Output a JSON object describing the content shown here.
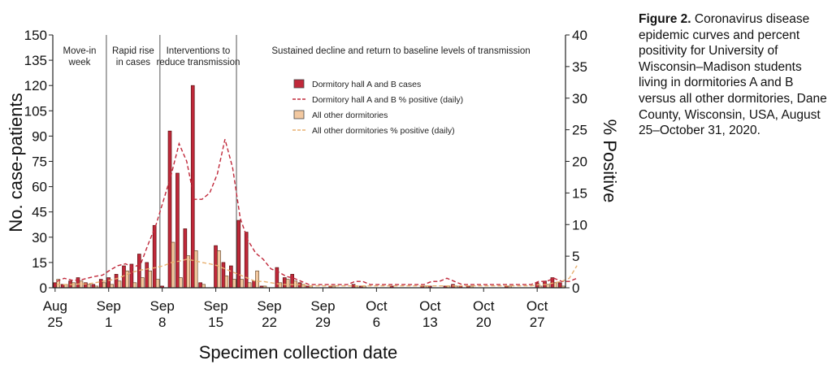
{
  "caption": {
    "label": "Figure 2.",
    "text": "Coronavirus disease epidemic curves and percent positivity for University of Wisconsin–Madison students living in dormitories A and B versus all other dormitories, Dane County, Wisconsin, USA, August 25–October 31, 2020."
  },
  "chart_data": {
    "type": "bar",
    "xlabel": "Specimen collection date",
    "ylabel": "No. case-patients",
    "y2label": "% Positive",
    "ylim": [
      0,
      150
    ],
    "y2lim": [
      0,
      40
    ],
    "yticks": [
      "0",
      "15",
      "30",
      "45",
      "60",
      "75",
      "90",
      "105",
      "120",
      "135",
      "150"
    ],
    "y2ticks": [
      "0",
      "5",
      "10",
      "15",
      "20",
      "25",
      "30",
      "35",
      "40"
    ],
    "xticks": [
      {
        "day": 0,
        "month": "Aug",
        "date": "25"
      },
      {
        "day": 7,
        "month": "Sep",
        "date": "1"
      },
      {
        "day": 14,
        "month": "Sep",
        "date": "8"
      },
      {
        "day": 21,
        "month": "Sep",
        "date": "15"
      },
      {
        "day": 28,
        "month": "Sep",
        "date": "22"
      },
      {
        "day": 35,
        "month": "Sep",
        "date": "29"
      },
      {
        "day": 42,
        "month": "Oct",
        "date": "6"
      },
      {
        "day": 49,
        "month": "Oct",
        "date": "13"
      },
      {
        "day": 56,
        "month": "Oct",
        "date": "20"
      },
      {
        "day": 63,
        "month": "Oct",
        "date": "27"
      }
    ],
    "phases": [
      {
        "start": 0,
        "end": 7,
        "lines": [
          "Move-in",
          "week"
        ]
      },
      {
        "start": 7,
        "end": 14,
        "lines": [
          "Rapid rise",
          "in cases"
        ]
      },
      {
        "start": 14,
        "end": 24,
        "lines": [
          "Interventions to",
          "reduce transmission"
        ]
      },
      {
        "start": 24,
        "end": 67,
        "lines": [
          "Sustained decline and return to baseline levels of transmission"
        ]
      }
    ],
    "legend": {
      "position": "upper-middle",
      "items": [
        {
          "label": "Dormitory hall A and B cases",
          "kind": "bar",
          "color": "#c0283a"
        },
        {
          "label": "Dormitory hall A and B % positive (daily)",
          "kind": "line",
          "color": "#c0283a"
        },
        {
          "label": "All other dormitories",
          "kind": "bar",
          "color": "#f2c8a0"
        },
        {
          "label": "All other dormitories % positive (daily)",
          "kind": "line",
          "color": "#e8b070"
        }
      ]
    },
    "series": [
      {
        "name": "Dormitory hall A and B cases",
        "kind": "bar",
        "axis": "left",
        "color": "#c0283a",
        "values": [
          3,
          2,
          4,
          6,
          3,
          2,
          5,
          6,
          8,
          13,
          14,
          20,
          15,
          37,
          1,
          93,
          68,
          35,
          120,
          3,
          0,
          25,
          15,
          13,
          40,
          33,
          4,
          1,
          0,
          12,
          6,
          8,
          3,
          1,
          0,
          0,
          1,
          0,
          0,
          2,
          1,
          0,
          0,
          0,
          1,
          0,
          0,
          0,
          1,
          1,
          0,
          1,
          2,
          1,
          1,
          0,
          0,
          0,
          0,
          1,
          0,
          0,
          0,
          3,
          4,
          6,
          3,
          2,
          5
        ]
      },
      {
        "name": "All other dormitories",
        "kind": "bar",
        "axis": "left",
        "color": "#f2c8a0",
        "values": [
          5,
          2,
          3,
          4,
          2,
          1,
          3,
          2,
          4,
          10,
          3,
          6,
          10,
          5,
          0,
          27,
          6,
          19,
          22,
          2,
          0,
          22,
          7,
          5,
          5,
          3,
          10,
          1,
          0,
          3,
          5,
          4,
          2,
          1,
          0,
          0,
          1,
          0,
          0,
          1,
          1,
          0,
          0,
          0,
          0,
          0,
          0,
          0,
          1,
          0,
          0,
          1,
          1,
          0,
          1,
          0,
          0,
          0,
          0,
          1,
          0,
          0,
          0,
          1,
          2,
          3,
          1,
          2,
          4
        ]
      },
      {
        "name": "Dormitory hall A and B % positive (daily)",
        "kind": "line",
        "axis": "right",
        "color": "#c0283a",
        "values": [
          1,
          1.5,
          1.2,
          1.2,
          1.5,
          1.8,
          2,
          2.8,
          3.5,
          3.8,
          3.2,
          3.8,
          7,
          10,
          14,
          18,
          22.8,
          20,
          14,
          14,
          15,
          18,
          23.5,
          19,
          11,
          7.5,
          5.5,
          4.5,
          3,
          2.5,
          1.8,
          1.5,
          1,
          0.5,
          0.5,
          0.5,
          0.5,
          0.5,
          0.5,
          1,
          1,
          0.5,
          0.5,
          0.5,
          0.5,
          0.5,
          0.5,
          0.5,
          0.5,
          1,
          1,
          1.5,
          1,
          0.5,
          0.5,
          0.5,
          0.5,
          0.5,
          0.5,
          0.5,
          0.5,
          0.5,
          0.5,
          1,
          1,
          1.5,
          1,
          1,
          1.5
        ]
      },
      {
        "name": "All other dormitories % positive (daily)",
        "kind": "line",
        "axis": "right",
        "color": "#e8b070",
        "values": [
          0.5,
          0.5,
          0.5,
          0.6,
          0.6,
          0.8,
          1,
          1.2,
          1.5,
          2,
          2.5,
          2.8,
          3,
          3.2,
          3.5,
          4,
          4.2,
          4.5,
          4.3,
          4,
          3.8,
          3.5,
          3,
          2.5,
          2,
          1.5,
          1,
          1,
          0.8,
          0.6,
          0.5,
          0.5,
          0.5,
          0.3,
          0.3,
          0.3,
          0.3,
          0.3,
          0.3,
          0.3,
          0.3,
          0.3,
          0.3,
          0.3,
          0.3,
          0.3,
          0.3,
          0.3,
          0.3,
          0.3,
          0.3,
          0.3,
          0.3,
          0.3,
          0.3,
          0.3,
          0.3,
          0.3,
          0.3,
          0.3,
          0.3,
          0.3,
          0.3,
          0.5,
          0.5,
          0.8,
          1,
          1.5,
          3.5
        ]
      }
    ]
  }
}
